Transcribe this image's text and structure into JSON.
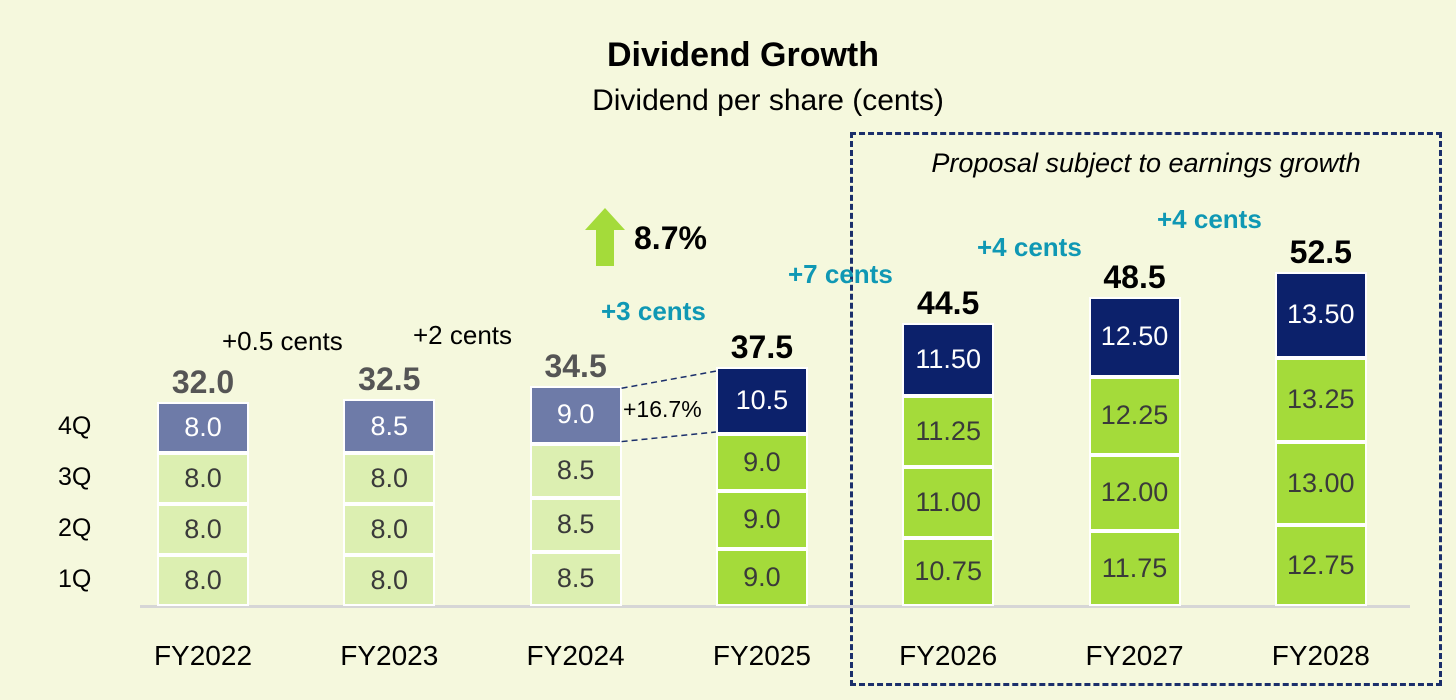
{
  "chart_data": {
    "type": "bar",
    "stacked": true,
    "title": "Dividend Growth",
    "subtitle": "Dividend per share (cents)",
    "categories": [
      "FY2022",
      "FY2023",
      "FY2024",
      "FY2025",
      "FY2026",
      "FY2027",
      "FY2028"
    ],
    "quarter_labels": [
      "1Q",
      "2Q",
      "3Q",
      "4Q"
    ],
    "series": [
      {
        "name": "1Q",
        "values": [
          8.0,
          8.0,
          8.5,
          9.0,
          10.75,
          11.75,
          12.75
        ],
        "labels": [
          "8.0",
          "8.0",
          "8.5",
          "9.0",
          "10.75",
          "11.75",
          "12.75"
        ]
      },
      {
        "name": "2Q",
        "values": [
          8.0,
          8.0,
          8.5,
          9.0,
          11.0,
          12.0,
          13.0
        ],
        "labels": [
          "8.0",
          "8.0",
          "8.5",
          "9.0",
          "11.00",
          "12.00",
          "13.00"
        ]
      },
      {
        "name": "3Q",
        "values": [
          8.0,
          8.0,
          8.5,
          9.0,
          11.25,
          12.25,
          13.25
        ],
        "labels": [
          "8.0",
          "8.0",
          "8.5",
          "9.0",
          "11.25",
          "12.25",
          "13.25"
        ]
      },
      {
        "name": "4Q",
        "values": [
          8.0,
          8.5,
          9.0,
          10.5,
          11.5,
          12.5,
          13.5
        ],
        "labels": [
          "8.0",
          "8.5",
          "9.0",
          "10.5",
          "11.50",
          "12.50",
          "13.50"
        ]
      }
    ],
    "totals": [
      "32.0",
      "32.5",
      "34.5",
      "37.5",
      "44.5",
      "48.5",
      "52.5"
    ],
    "total_values": [
      32.0,
      32.5,
      34.5,
      37.5,
      44.5,
      48.5,
      52.5
    ],
    "increments": [
      "+0.5 cents",
      "+2 cents",
      "+3 cents",
      "+7 cents",
      "+4 cents",
      "+4 cents"
    ],
    "growth_percent": "8.7%",
    "q4_growth": "+16.7%",
    "proposal_note": "Proposal subject to earnings growth",
    "ylim": [
      0,
      55
    ],
    "grid": false,
    "colors": {
      "past_q123": "#dcefb1",
      "past_q4": "#6e7ba8",
      "future_q123": "#a4db3a",
      "future_q4": "#0c216b",
      "teal_text": "#0f98b4",
      "past_total": "#555555",
      "future_total": "#000000"
    }
  }
}
